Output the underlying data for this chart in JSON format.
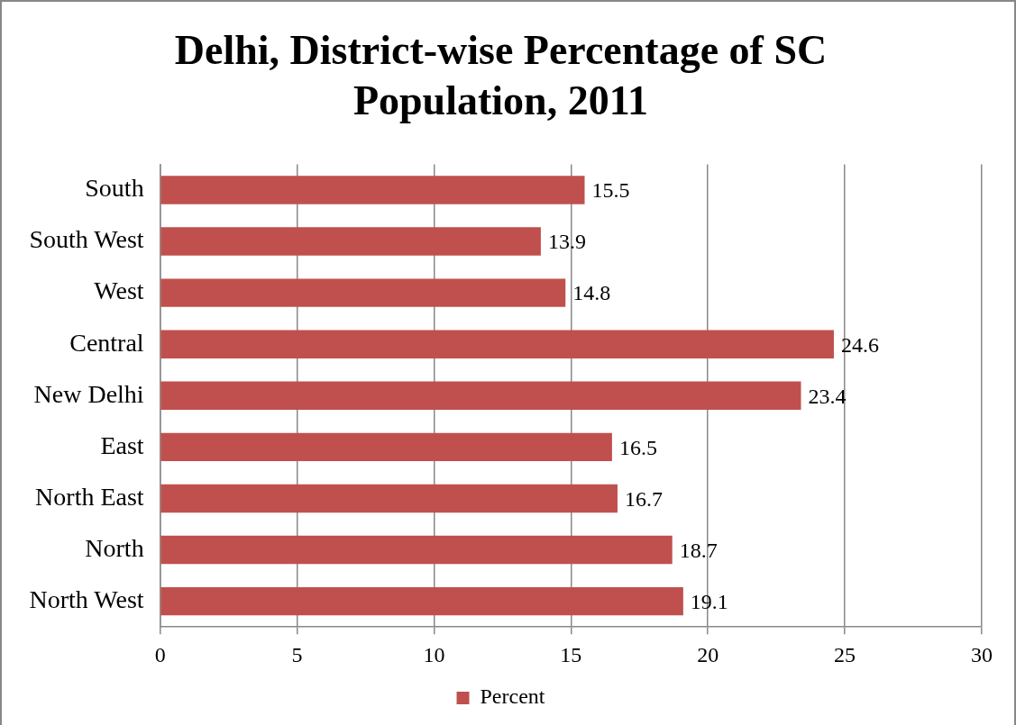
{
  "chart_data": {
    "type": "bar",
    "orientation": "horizontal",
    "title": "Delhi, District-wise Percentage of SC Population, 2011",
    "categories": [
      "South",
      "South West",
      "West",
      "Central",
      "New Delhi",
      "East",
      "North East",
      "North",
      "North West"
    ],
    "series": [
      {
        "name": "Percent",
        "color": "#c0504d",
        "values": [
          15.5,
          13.9,
          14.8,
          24.6,
          23.4,
          16.5,
          16.7,
          18.7,
          19.1
        ]
      }
    ],
    "xlim": [
      0,
      30
    ],
    "xticks": [
      0,
      5,
      10,
      15,
      20,
      25,
      30
    ],
    "grid": "x",
    "legend": "bottom",
    "data_labels": true
  }
}
